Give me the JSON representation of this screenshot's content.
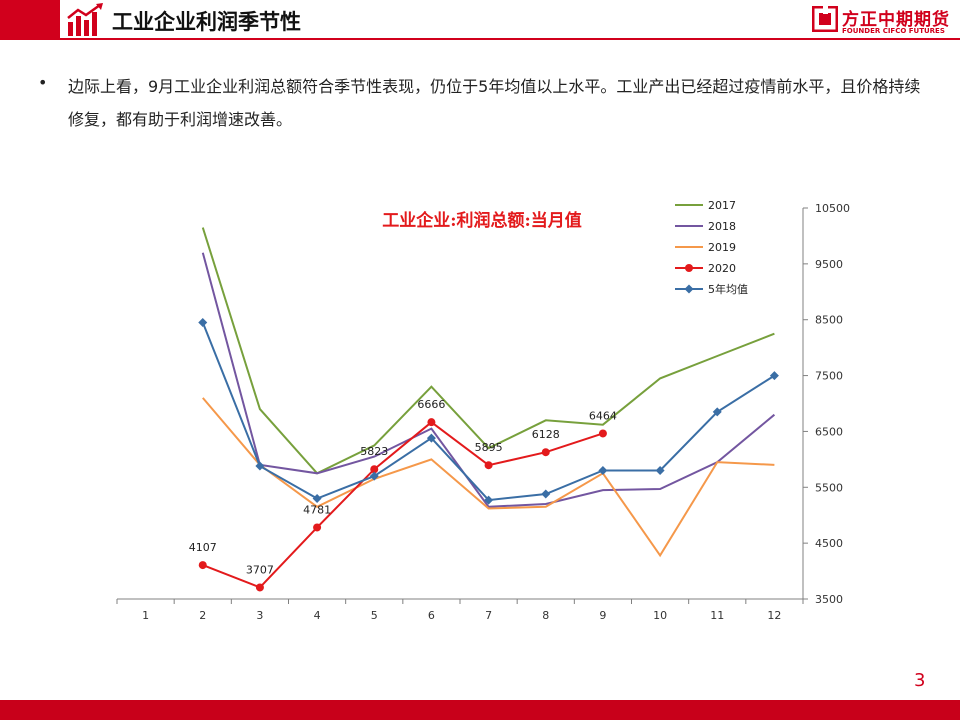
{
  "header": {
    "title": "工业企业利润季节性"
  },
  "logo": {
    "cn": "方正中期期货",
    "en": "FOUNDER CIFCO FUTURES"
  },
  "body": {
    "bullet": "•",
    "text": "边际上看，9月工业企业利润总额符合季节性表现，仍位于5年均值以上水平。工业产出已经超过疫情前水平，且价格持续修复，都有助于利润增速改善。"
  },
  "page_number": "3",
  "colors": {
    "brand_red": "#d1001c",
    "s2017": "#77a03c",
    "s2018": "#7356a0",
    "s2019": "#f5984a",
    "s2020": "#e31a1c",
    "avg": "#3a6ea5"
  },
  "chart_data": {
    "type": "line",
    "title": "工业企业:利润总额:当月值",
    "x": [
      1,
      2,
      3,
      4,
      5,
      6,
      7,
      8,
      9,
      10,
      11,
      12
    ],
    "ylim": [
      3500,
      10500
    ],
    "yticks": [
      3500,
      4500,
      5500,
      6500,
      7500,
      8500,
      9500,
      10500
    ],
    "y_axis_side": "right",
    "legend": "top-right",
    "series": [
      {
        "name": "2017",
        "color": "#77a03c",
        "marker": "none",
        "values": [
          null,
          10150,
          6900,
          5750,
          6250,
          7300,
          6200,
          6700,
          6620,
          7450,
          7850,
          8250
        ]
      },
      {
        "name": "2018",
        "color": "#7356a0",
        "marker": "none",
        "values": [
          null,
          9700,
          5900,
          5750,
          6050,
          6550,
          5150,
          5200,
          5450,
          5470,
          5950,
          6800
        ]
      },
      {
        "name": "2019",
        "color": "#f5984a",
        "marker": "none",
        "values": [
          null,
          7100,
          5900,
          5150,
          5650,
          6000,
          5120,
          5150,
          5750,
          4280,
          5950,
          5900
        ]
      },
      {
        "name": "2020",
        "color": "#e31a1c",
        "marker": "circle",
        "values": [
          null,
          4107,
          3707,
          4781,
          5823,
          6666,
          5895,
          6128,
          6464,
          null,
          null,
          null
        ],
        "labels": [
          "",
          "4107",
          "3707",
          "4781",
          "5823",
          "6666",
          "5895",
          "6128",
          "6464",
          "",
          "",
          ""
        ]
      },
      {
        "name": "5年均值",
        "color": "#3a6ea5",
        "marker": "diamond",
        "values": [
          null,
          8450,
          5880,
          5300,
          5700,
          6380,
          5270,
          5380,
          5800,
          5800,
          6850,
          7500
        ]
      }
    ]
  }
}
